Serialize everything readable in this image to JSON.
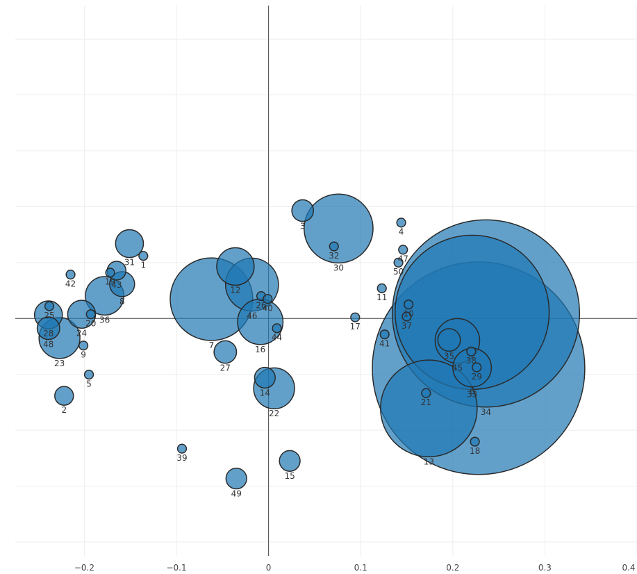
{
  "chart_data": {
    "type": "scatter",
    "title": "",
    "xlabel": "",
    "ylabel": "",
    "xlim": [
      -0.275,
      0.4
    ],
    "ylim": [
      -0.85,
      1.12
    ],
    "x_ticks": [
      {
        "value": -0.2,
        "label": "−0.2"
      },
      {
        "value": -0.1,
        "label": "−0.1"
      },
      {
        "value": 0,
        "label": "0"
      },
      {
        "value": 0.1,
        "label": "0.1"
      },
      {
        "value": 0.2,
        "label": "0.2"
      },
      {
        "value": 0.3,
        "label": "0.3"
      },
      {
        "value": 0.4,
        "label": "0.4"
      }
    ],
    "y_gridlines": [
      -0.8,
      -0.6,
      -0.4,
      -0.2,
      0.2,
      0.4,
      0.6,
      0.8,
      1.0
    ],
    "grid": true,
    "marker_color": "#1f77b4",
    "marker_outline": "#2a2a2a",
    "points": [
      {
        "label": "1",
        "x": -0.136,
        "y": 0.224,
        "size": 0.002
      },
      {
        "label": "2",
        "x": -0.222,
        "y": -0.277,
        "size": 0.009
      },
      {
        "label": "3",
        "x": 0.037,
        "y": 0.386,
        "size": 0.012
      },
      {
        "label": "4",
        "x": 0.144,
        "y": 0.343,
        "size": 0.002
      },
      {
        "label": "5",
        "x": -0.195,
        "y": -0.201,
        "size": 0.002
      },
      {
        "label": "6",
        "x": 0.221,
        "y": -0.176,
        "size": 0.038
      },
      {
        "label": "7",
        "x": -0.062,
        "y": 0.069,
        "size": 0.175
      },
      {
        "label": "8",
        "x": -0.159,
        "y": 0.123,
        "size": 0.016
      },
      {
        "label": "9",
        "x": -0.201,
        "y": -0.097,
        "size": 0.002
      },
      {
        "label": "10",
        "x": 0.152,
        "y": 0.05,
        "size": 0.002
      },
      {
        "label": "11",
        "x": 0.123,
        "y": 0.108,
        "size": 0.002
      },
      {
        "label": "12",
        "x": -0.036,
        "y": 0.186,
        "size": 0.036
      },
      {
        "label": "13",
        "x": 0.174,
        "y": -0.322,
        "size": 0.24
      },
      {
        "label": "14",
        "x": -0.004,
        "y": -0.212,
        "size": 0.011
      },
      {
        "label": "15",
        "x": 0.023,
        "y": -0.51,
        "size": 0.011
      },
      {
        "label": "16",
        "x": -0.009,
        "y": -0.012,
        "size": 0.053
      },
      {
        "label": "17",
        "x": 0.094,
        "y": 0.004,
        "size": 0.002
      },
      {
        "label": "18",
        "x": 0.224,
        "y": -0.441,
        "size": 0.002
      },
      {
        "label": "19",
        "x": -0.172,
        "y": 0.164,
        "size": 0.002
      },
      {
        "label": "20",
        "x": -0.193,
        "y": 0.015,
        "size": 0.002
      },
      {
        "label": "21",
        "x": 0.171,
        "y": -0.267,
        "size": 0.002
      },
      {
        "label": "22",
        "x": 0.006,
        "y": -0.25,
        "size": 0.043
      },
      {
        "label": "23",
        "x": -0.227,
        "y": -0.07,
        "size": 0.043
      },
      {
        "label": "24",
        "x": -0.203,
        "y": 0.015,
        "size": 0.02
      },
      {
        "label": "25",
        "x": -0.238,
        "y": 0.044,
        "size": 0.002
      },
      {
        "label": "26",
        "x": -0.008,
        "y": 0.08,
        "size": 0.002
      },
      {
        "label": "27",
        "x": -0.047,
        "y": -0.12,
        "size": 0.013
      },
      {
        "label": "28",
        "x": -0.239,
        "y": 0.013,
        "size": 0.02
      },
      {
        "label": "29",
        "x": 0.226,
        "y": -0.175,
        "size": 0.002
      },
      {
        "label": "30",
        "x": 0.076,
        "y": 0.322,
        "size": 0.122
      },
      {
        "label": "31",
        "x": -0.151,
        "y": 0.268,
        "size": 0.02
      },
      {
        "label": "32",
        "x": 0.071,
        "y": 0.258,
        "size": 0.002
      },
      {
        "label": "33",
        "x": 0.221,
        "y": 0.022,
        "size": 0.61
      },
      {
        "label": "34",
        "x": 0.236,
        "y": 0.018,
        "size": 0.9
      },
      {
        "label": "35",
        "x": 0.196,
        "y": -0.077,
        "size": 0.013
      },
      {
        "label": "36",
        "x": -0.178,
        "y": 0.081,
        "size": 0.038
      },
      {
        "label": "37",
        "x": 0.15,
        "y": 0.007,
        "size": 0.002
      },
      {
        "label": "38",
        "x": 0.22,
        "y": -0.118,
        "size": 0.002
      },
      {
        "label": "39",
        "x": -0.094,
        "y": -0.466,
        "size": 0.002
      },
      {
        "label": "40",
        "x": -0.001,
        "y": 0.07,
        "size": 0.002
      },
      {
        "label": "41",
        "x": 0.126,
        "y": -0.057,
        "size": 0.002
      },
      {
        "label": "42",
        "x": -0.215,
        "y": 0.157,
        "size": 0.002
      },
      {
        "label": "43",
        "x": -0.165,
        "y": 0.171,
        "size": 0.009
      },
      {
        "label": "44",
        "x": 0.009,
        "y": -0.035,
        "size": 0.002
      },
      {
        "label": "45",
        "x": 0.205,
        "y": -0.08,
        "size": 0.051
      },
      {
        "label": "46",
        "x": -0.018,
        "y": 0.121,
        "size": 0.072
      },
      {
        "label": "47",
        "x": 0.146,
        "y": 0.246,
        "size": 0.002
      },
      {
        "label": "48",
        "x": -0.239,
        "y": -0.035,
        "size": 0.013
      },
      {
        "label": "49",
        "x": -0.035,
        "y": -0.573,
        "size": 0.011
      },
      {
        "label": "50",
        "x": 0.141,
        "y": 0.2,
        "size": 0.002
      }
    ],
    "halos": [
      {
        "x": 0.228,
        "y": -0.178,
        "size": 1.16
      }
    ]
  }
}
